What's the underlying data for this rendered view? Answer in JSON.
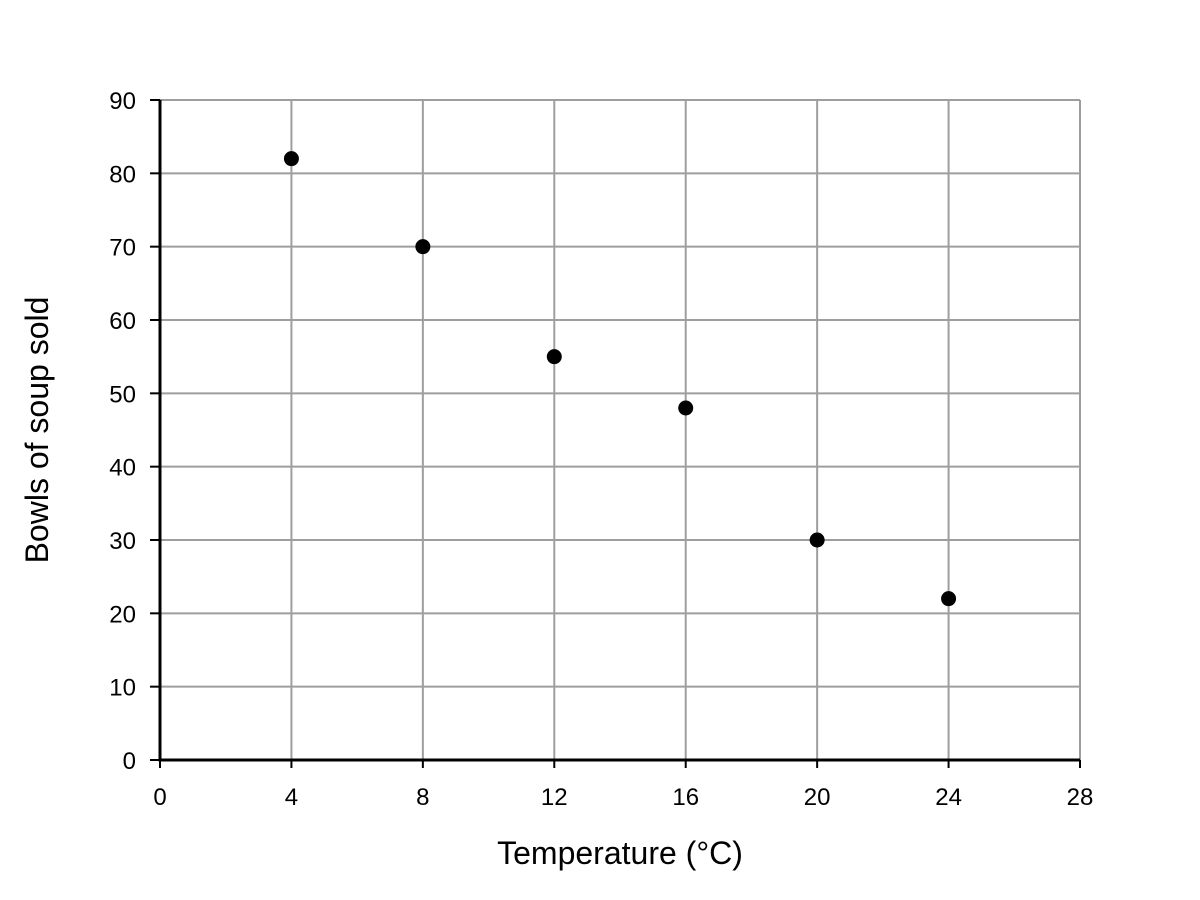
{
  "chart_data": {
    "type": "scatter",
    "title": "",
    "xlabel": "Temperature (°C)",
    "ylabel": "Bowls of soup sold",
    "xlim": [
      0,
      28
    ],
    "ylim": [
      0,
      90
    ],
    "x_ticks": [
      0,
      4,
      8,
      12,
      16,
      20,
      24,
      28
    ],
    "y_ticks": [
      0,
      10,
      20,
      30,
      40,
      50,
      60,
      70,
      80,
      90
    ],
    "grid": true,
    "legend": "none",
    "series": [
      {
        "color": "#000000",
        "points": [
          {
            "x": 4,
            "y": 82
          },
          {
            "x": 8,
            "y": 70
          },
          {
            "x": 12,
            "y": 55
          },
          {
            "x": 16,
            "y": 48
          },
          {
            "x": 20,
            "y": 30
          },
          {
            "x": 24,
            "y": 22
          }
        ]
      }
    ],
    "colors": {
      "grid": "#9e9e9e",
      "axis": "#000000",
      "marker": "#000000"
    }
  }
}
